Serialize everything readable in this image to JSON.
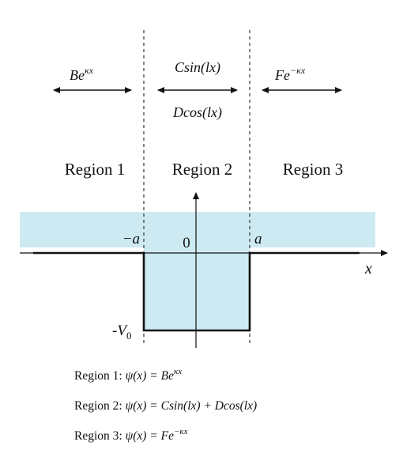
{
  "colors": {
    "well_fill": "#cdeaf2",
    "band_fill": "#cdeaf2",
    "line": "#111111",
    "guide": "#333333"
  },
  "waves": {
    "region1": "Be",
    "region1_sup": "κx",
    "region2_sin": "Csin(lx)",
    "region2_cos": "Dcos(lx)",
    "region3": "Fe",
    "region3_sup": "−κx"
  },
  "regions": {
    "r1": "Region 1",
    "r2": "Region 2",
    "r3": "Region 3"
  },
  "axis": {
    "x_label": "x",
    "origin_label": "0",
    "left_edge": "−a",
    "right_edge": "a",
    "depth_base": "-V",
    "depth_sub": "0"
  },
  "solutions": [
    {
      "prefix": "Region 1: ",
      "body": "ψ(x) = Be",
      "sup": "κx",
      "tail": ""
    },
    {
      "prefix": "Region 2: ",
      "body": "ψ(x) = Csin(lx) + Dcos(lx)",
      "sup": "",
      "tail": ""
    },
    {
      "prefix": "Region 3: ",
      "body": "ψ(x) = Fe",
      "sup": "−κx",
      "tail": ""
    }
  ]
}
